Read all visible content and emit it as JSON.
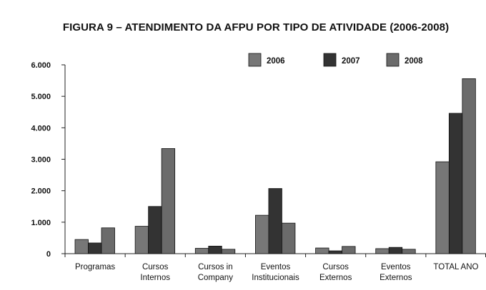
{
  "chart_data": {
    "type": "bar",
    "title": "FIGURA 9 – ATENDIMENTO DA AFPU POR TIPO DE ATIVIDADE (2006-2008)",
    "xlabel": "",
    "ylabel": "",
    "ylim": [
      0,
      6000
    ],
    "yticks": [
      {
        "value": 0,
        "label": "0"
      },
      {
        "value": 1000,
        "label": "1.000"
      },
      {
        "value": 2000,
        "label": "2.000"
      },
      {
        "value": 3000,
        "label": "3.000"
      },
      {
        "value": 4000,
        "label": "4.000"
      },
      {
        "value": 5000,
        "label": "5.000"
      },
      {
        "value": 6000,
        "label": "6.000"
      }
    ],
    "categories": [
      [
        "Programas"
      ],
      [
        "Cursos",
        "Internos"
      ],
      [
        "Cursos in",
        "Company"
      ],
      [
        "Eventos",
        "Institucionais"
      ],
      [
        "Cursos",
        "Externos"
      ],
      [
        "Eventos",
        "Externos"
      ],
      [
        "TOTAL ANO"
      ]
    ],
    "series": [
      {
        "name": "2006",
        "color": "#777777",
        "values": [
          450,
          870,
          170,
          1220,
          180,
          160,
          2920
        ]
      },
      {
        "name": "2007",
        "color": "#333333",
        "values": [
          340,
          1500,
          240,
          2070,
          90,
          200,
          4460
        ]
      },
      {
        "name": "2008",
        "color": "#6b6b6b",
        "values": [
          820,
          3340,
          140,
          970,
          230,
          140,
          5560
        ]
      }
    ],
    "legend_position": "top",
    "grid": false
  }
}
